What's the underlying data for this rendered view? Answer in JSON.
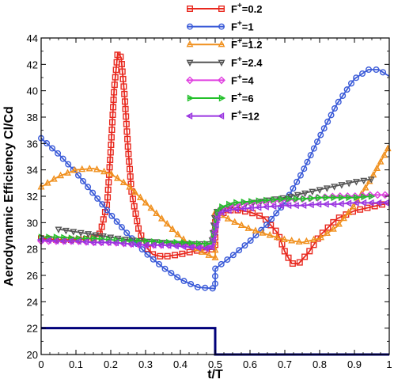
{
  "chart_data": {
    "type": "line",
    "title": "",
    "xlabel": "t/T",
    "ylabel": "Aerodynamic Efficiency Cl/Cd",
    "xlim": [
      0,
      1
    ],
    "ylim": [
      20,
      44
    ],
    "xticks": [
      "0",
      "0.1",
      "0.2",
      "0.3",
      "0.4",
      "0.5",
      "0.6",
      "0.7",
      "0.8",
      "0.9",
      "1"
    ],
    "yticks": [
      "20",
      "22",
      "24",
      "26",
      "28",
      "30",
      "32",
      "34",
      "36",
      "38",
      "40",
      "42",
      "44"
    ],
    "grid": false,
    "legend_position": "top-right, above plot",
    "series": [
      {
        "name": "F+=0.2",
        "legend_base": "F",
        "legend_sup": "+",
        "legend_value": "=0.2",
        "color": "#e8281e",
        "marker": "square",
        "x": [
          0,
          0.05,
          0.1,
          0.15,
          0.17,
          0.19,
          0.2,
          0.21,
          0.22,
          0.23,
          0.24,
          0.25,
          0.26,
          0.28,
          0.3,
          0.32,
          0.35,
          0.4,
          0.45,
          0.5,
          0.5,
          0.55,
          0.6,
          0.64,
          0.68,
          0.7,
          0.72,
          0.74,
          0.77,
          0.8,
          0.85,
          0.9,
          0.95,
          1.0
        ],
        "y": [
          28.8,
          28.7,
          28.7,
          28.8,
          29.2,
          31.5,
          35.5,
          40.2,
          42.9,
          42.5,
          39.5,
          35.5,
          32.3,
          29.5,
          28.2,
          27.6,
          27.4,
          27.6,
          27.9,
          28.0,
          30.5,
          31.0,
          30.8,
          30.4,
          29.2,
          27.8,
          26.9,
          26.9,
          27.8,
          29.0,
          30.3,
          30.9,
          31.2,
          31.5
        ]
      },
      {
        "name": "F+=1",
        "legend_base": "F",
        "legend_sup": "+",
        "legend_value": "=1",
        "color": "#3b5bd8",
        "marker": "circle",
        "x": [
          0,
          0.05,
          0.1,
          0.15,
          0.2,
          0.25,
          0.3,
          0.35,
          0.4,
          0.45,
          0.5,
          0.5,
          0.55,
          0.6,
          0.65,
          0.7,
          0.75,
          0.8,
          0.85,
          0.9,
          0.94,
          0.97,
          1.0
        ],
        "y": [
          36.4,
          35.2,
          33.8,
          32.2,
          30.6,
          29.1,
          27.7,
          26.6,
          25.7,
          25.1,
          25.0,
          26.5,
          27.5,
          28.6,
          29.9,
          31.5,
          33.8,
          36.5,
          39.0,
          40.9,
          41.6,
          41.6,
          41.1
        ]
      },
      {
        "name": "F+=1.2",
        "legend_base": "F",
        "legend_sup": "+",
        "legend_value": "=1.2",
        "color": "#f0901e",
        "marker": "triangle-up",
        "x": [
          0,
          0.05,
          0.1,
          0.15,
          0.2,
          0.25,
          0.3,
          0.35,
          0.4,
          0.45,
          0.5,
          0.5,
          0.55,
          0.6,
          0.65,
          0.7,
          0.75,
          0.8,
          0.85,
          0.9,
          0.95,
          1.0
        ],
        "y": [
          32.7,
          33.5,
          34.0,
          34.1,
          33.7,
          32.8,
          31.5,
          30.2,
          28.9,
          27.9,
          27.3,
          30.8,
          30.1,
          29.5,
          29.1,
          28.7,
          28.5,
          28.8,
          29.7,
          31.3,
          33.4,
          35.8
        ]
      },
      {
        "name": "F+=2.4",
        "legend_base": "F",
        "legend_sup": "+",
        "legend_value": "=2.4",
        "color": "#555555",
        "marker": "triangle-down",
        "x": [
          0.05,
          0.1,
          0.15,
          0.2,
          0.25,
          0.3,
          0.35,
          0.4,
          0.45,
          0.49,
          0.5,
          0.55,
          0.6,
          0.65,
          0.7,
          0.75,
          0.8,
          0.85,
          0.9,
          0.95
        ],
        "y": [
          29.5,
          29.3,
          29.1,
          28.9,
          28.7,
          28.6,
          28.5,
          28.4,
          28.4,
          28.4,
          30.8,
          31.3,
          31.5,
          31.7,
          31.9,
          32.2,
          32.5,
          32.8,
          33.1,
          33.3
        ]
      },
      {
        "name": "F+=4",
        "legend_base": "F",
        "legend_sup": "+",
        "legend_value": "=4",
        "color": "#e040e0",
        "marker": "diamond",
        "x": [
          0,
          0.05,
          0.1,
          0.15,
          0.2,
          0.25,
          0.3,
          0.35,
          0.4,
          0.45,
          0.49,
          0.51,
          0.55,
          0.6,
          0.65,
          0.7,
          0.75,
          0.8,
          0.85,
          0.9,
          0.95,
          1.0
        ],
        "y": [
          28.6,
          28.6,
          28.6,
          28.5,
          28.5,
          28.4,
          28.3,
          28.3,
          28.3,
          28.2,
          28.2,
          31.0,
          31.3,
          31.5,
          31.6,
          31.7,
          31.8,
          31.9,
          32.0,
          32.0,
          32.1,
          32.1
        ]
      },
      {
        "name": "F+=6",
        "legend_base": "F",
        "legend_sup": "+",
        "legend_value": "=6",
        "color": "#22c02a",
        "marker": "triangle-right",
        "x": [
          0,
          0.05,
          0.1,
          0.15,
          0.2,
          0.25,
          0.3,
          0.35,
          0.4,
          0.45,
          0.49,
          0.51,
          0.55,
          0.6,
          0.65,
          0.7,
          0.75,
          0.8,
          0.85,
          0.9,
          0.95
        ],
        "y": [
          28.9,
          28.9,
          28.8,
          28.8,
          28.7,
          28.6,
          28.6,
          28.5,
          28.5,
          28.4,
          28.4,
          31.1,
          31.5,
          31.6,
          31.7,
          31.8,
          31.8,
          31.9,
          31.9,
          31.9,
          32.0
        ]
      },
      {
        "name": "F+=12",
        "legend_base": "F",
        "legend_sup": "+",
        "legend_value": "=12",
        "color": "#9a35e0",
        "marker": "triangle-left",
        "x": [
          0,
          0.05,
          0.1,
          0.15,
          0.2,
          0.25,
          0.3,
          0.35,
          0.4,
          0.45,
          0.49,
          0.51,
          0.55,
          0.6,
          0.65,
          0.7,
          0.75,
          0.8,
          0.85,
          0.9,
          0.95,
          1.0
        ],
        "y": [
          28.7,
          28.6,
          28.6,
          28.5,
          28.5,
          28.4,
          28.3,
          28.3,
          28.2,
          28.1,
          28.0,
          30.7,
          31.0,
          31.1,
          31.2,
          31.3,
          31.3,
          31.4,
          31.4,
          31.5,
          31.5,
          31.5
        ]
      }
    ],
    "extra_lines": [
      {
        "kind": "step",
        "color": "#00007a",
        "x": [
          0,
          0.5,
          0.5,
          1.0
        ],
        "y": [
          22,
          22,
          20,
          20
        ]
      }
    ]
  }
}
